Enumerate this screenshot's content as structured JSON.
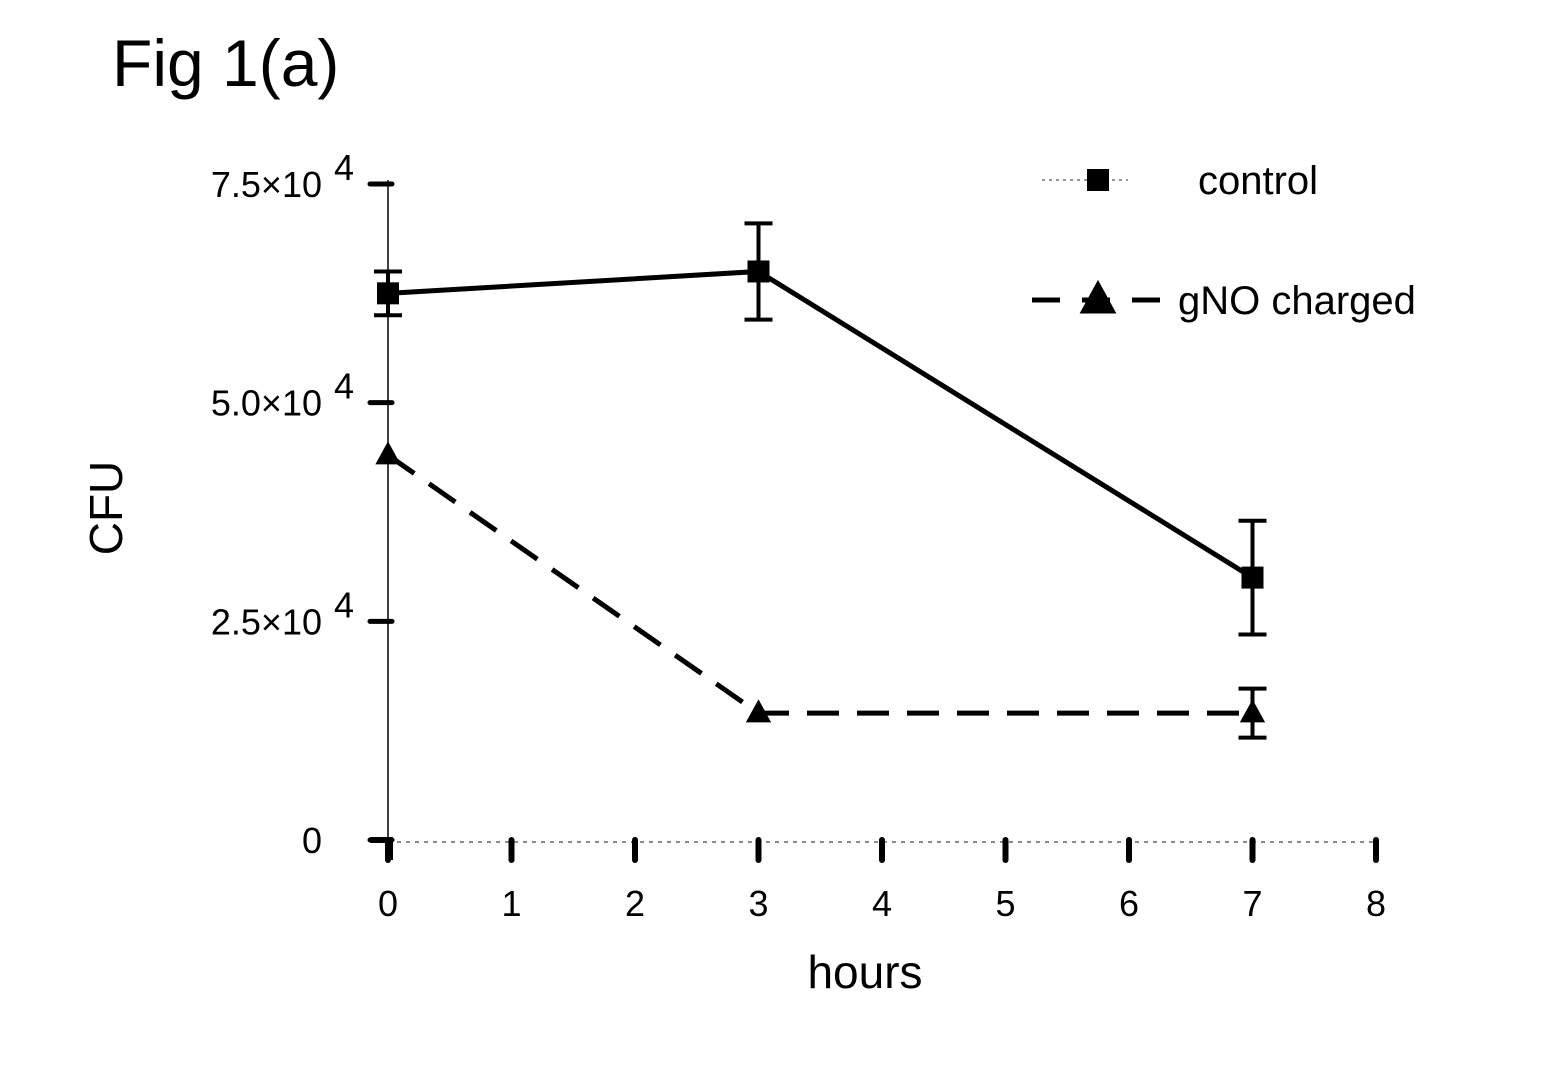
{
  "figure": {
    "title": "Fig 1(a)"
  },
  "chart_data": {
    "type": "line",
    "title": "",
    "xlabel": "hours",
    "ylabel": "CFU",
    "xlim": [
      0,
      8
    ],
    "ylim": [
      0,
      75000
    ],
    "x_ticks": [
      0,
      1,
      2,
      3,
      4,
      5,
      6,
      7,
      8
    ],
    "x_tick_labels": [
      "0",
      "1",
      "2",
      "3",
      "4",
      "5",
      "6",
      "7",
      "8"
    ],
    "y_ticks": [
      0,
      25000,
      50000,
      75000
    ],
    "y_tick_labels": [
      {
        "mantissa": "0",
        "exponent": ""
      },
      {
        "mantissa": "2.5×10",
        "exponent": "4"
      },
      {
        "mantissa": "5.0×10",
        "exponent": "4"
      },
      {
        "mantissa": "7.5×10",
        "exponent": "4"
      }
    ],
    "grid": false,
    "legend_position": "top-right",
    "series": [
      {
        "name": "control",
        "marker": "square",
        "line_style": "solid",
        "color": "#000000",
        "x": [
          0,
          3,
          7
        ],
        "y": [
          62500,
          65000,
          30000
        ],
        "error": [
          2500,
          5500,
          6500
        ]
      },
      {
        "name": "gNO charged",
        "marker": "triangle",
        "line_style": "dashed",
        "color": "#000000",
        "x": [
          0,
          3,
          7
        ],
        "y": [
          44000,
          14500,
          14500
        ],
        "error": [
          0,
          0,
          2800
        ]
      }
    ]
  }
}
